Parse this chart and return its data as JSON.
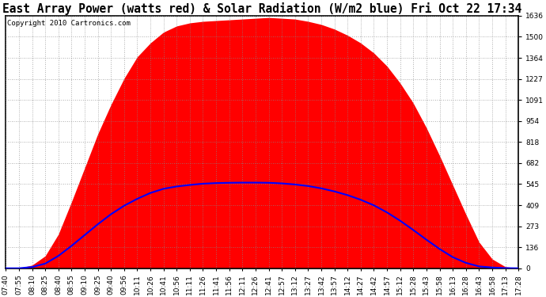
{
  "title": "East Array Power (watts red) & Solar Radiation (W/m2 blue) Fri Oct 22 17:34",
  "copyright_text": "Copyright 2010 Cartronics.com",
  "yticks": [
    0.0,
    136.4,
    272.7,
    409.1,
    545.4,
    681.8,
    818.1,
    954.5,
    1090.8,
    1227.2,
    1363.5,
    1499.9,
    1636.2
  ],
  "ymax": 1636.2,
  "ymin": 0.0,
  "xtick_labels": [
    "07:40",
    "07:55",
    "08:10",
    "08:25",
    "08:40",
    "08:55",
    "09:10",
    "09:25",
    "09:40",
    "09:56",
    "10:11",
    "10:26",
    "10:41",
    "10:56",
    "11:11",
    "11:26",
    "11:41",
    "11:56",
    "12:11",
    "12:26",
    "12:41",
    "12:57",
    "13:12",
    "13:27",
    "13:42",
    "13:57",
    "14:12",
    "14:27",
    "14:42",
    "14:57",
    "15:12",
    "15:28",
    "15:43",
    "15:58",
    "16:13",
    "16:28",
    "16:43",
    "16:58",
    "17:13",
    "17:28"
  ],
  "power_data": [
    [
      0,
      0
    ],
    [
      1,
      0
    ],
    [
      2,
      20
    ],
    [
      3,
      80
    ],
    [
      4,
      220
    ],
    [
      5,
      430
    ],
    [
      6,
      650
    ],
    [
      7,
      870
    ],
    [
      8,
      1060
    ],
    [
      9,
      1230
    ],
    [
      10,
      1370
    ],
    [
      11,
      1460
    ],
    [
      12,
      1530
    ],
    [
      13,
      1570
    ],
    [
      14,
      1590
    ],
    [
      15,
      1600
    ],
    [
      16,
      1605
    ],
    [
      17,
      1610
    ],
    [
      18,
      1615
    ],
    [
      19,
      1620
    ],
    [
      20,
      1625
    ],
    [
      21,
      1620
    ],
    [
      22,
      1615
    ],
    [
      23,
      1600
    ],
    [
      24,
      1580
    ],
    [
      25,
      1550
    ],
    [
      26,
      1510
    ],
    [
      27,
      1460
    ],
    [
      28,
      1395
    ],
    [
      29,
      1310
    ],
    [
      30,
      1200
    ],
    [
      31,
      1070
    ],
    [
      32,
      910
    ],
    [
      33,
      730
    ],
    [
      34,
      540
    ],
    [
      35,
      350
    ],
    [
      36,
      170
    ],
    [
      37,
      60
    ],
    [
      38,
      10
    ],
    [
      39,
      0
    ]
  ],
  "solar_data": [
    [
      0,
      0
    ],
    [
      1,
      0
    ],
    [
      2,
      8
    ],
    [
      3,
      30
    ],
    [
      4,
      80
    ],
    [
      5,
      145
    ],
    [
      6,
      215
    ],
    [
      7,
      285
    ],
    [
      8,
      350
    ],
    [
      9,
      405
    ],
    [
      10,
      450
    ],
    [
      11,
      488
    ],
    [
      12,
      515
    ],
    [
      13,
      530
    ],
    [
      14,
      540
    ],
    [
      15,
      548
    ],
    [
      16,
      552
    ],
    [
      17,
      554
    ],
    [
      18,
      555
    ],
    [
      19,
      555
    ],
    [
      20,
      554
    ],
    [
      21,
      550
    ],
    [
      22,
      543
    ],
    [
      23,
      533
    ],
    [
      24,
      518
    ],
    [
      25,
      498
    ],
    [
      26,
      474
    ],
    [
      27,
      444
    ],
    [
      28,
      408
    ],
    [
      29,
      362
    ],
    [
      30,
      308
    ],
    [
      31,
      248
    ],
    [
      32,
      185
    ],
    [
      33,
      125
    ],
    [
      34,
      72
    ],
    [
      35,
      35
    ],
    [
      36,
      12
    ],
    [
      37,
      5
    ],
    [
      38,
      1
    ],
    [
      39,
      0
    ]
  ],
  "power_color": "#FF0000",
  "solar_color": "#0000FF",
  "bg_color": "#FFFFFF",
  "plot_bg_color": "#FFFFFF",
  "grid_color": "#888888",
  "title_fontsize": 10.5,
  "tick_fontsize": 6.5,
  "copyright_fontsize": 6.5
}
